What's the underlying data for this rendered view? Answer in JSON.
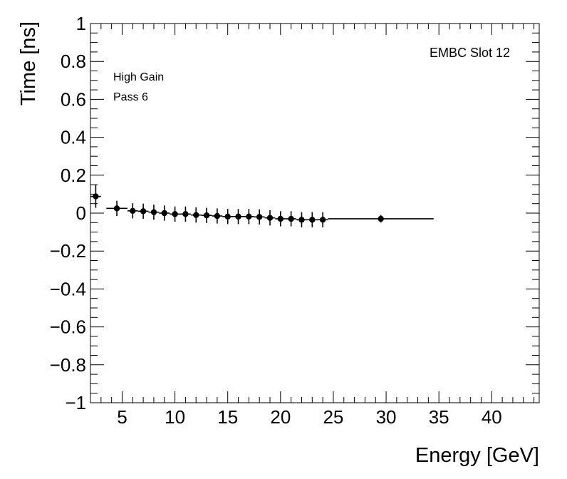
{
  "chart_data": {
    "type": "scatter",
    "xlabel": "Energy [GeV]",
    "ylabel": "Time [ns]",
    "xlim": [
      2,
      44.5
    ],
    "ylim": [
      -1,
      1
    ],
    "x_ticks": [
      5,
      10,
      15,
      20,
      25,
      30,
      35,
      40
    ],
    "x_tick_labels": [
      "5",
      "10",
      "15",
      "20",
      "25",
      "30",
      "35",
      "40"
    ],
    "y_ticks": [
      -1,
      -0.8,
      -0.6,
      -0.4,
      -0.2,
      0,
      0.2,
      0.4,
      0.6,
      0.8,
      1
    ],
    "y_tick_labels": [
      "−1",
      "−0.8",
      "−0.6",
      "−0.4",
      "−0.2",
      "0",
      "0.2",
      "0.4",
      "0.6",
      "0.8",
      "1"
    ],
    "grid": false,
    "annotations": {
      "top_right": "EMBC Slot 12",
      "top_left_1": "High Gain",
      "top_left_2": "Pass 6"
    },
    "points": [
      {
        "x": 2.5,
        "y": 0.088,
        "xerr": 0.5,
        "yerr": 0.06
      },
      {
        "x": 4.5,
        "y": 0.025,
        "xerr": 1.0,
        "yerr": 0.04
      },
      {
        "x": 6.0,
        "y": 0.012,
        "xerr": 0.5,
        "yerr": 0.04
      },
      {
        "x": 7.0,
        "y": 0.01,
        "xerr": 0.5,
        "yerr": 0.04
      },
      {
        "x": 8.0,
        "y": 0.005,
        "xerr": 0.5,
        "yerr": 0.04
      },
      {
        "x": 9.0,
        "y": 0.0,
        "xerr": 0.5,
        "yerr": 0.04
      },
      {
        "x": 10.0,
        "y": -0.005,
        "xerr": 0.5,
        "yerr": 0.04
      },
      {
        "x": 11.0,
        "y": -0.005,
        "xerr": 0.5,
        "yerr": 0.04
      },
      {
        "x": 12.0,
        "y": -0.01,
        "xerr": 0.5,
        "yerr": 0.04
      },
      {
        "x": 13.0,
        "y": -0.012,
        "xerr": 0.5,
        "yerr": 0.04
      },
      {
        "x": 14.0,
        "y": -0.015,
        "xerr": 0.5,
        "yerr": 0.04
      },
      {
        "x": 15.0,
        "y": -0.018,
        "xerr": 0.5,
        "yerr": 0.04
      },
      {
        "x": 16.0,
        "y": -0.018,
        "xerr": 0.5,
        "yerr": 0.04
      },
      {
        "x": 17.0,
        "y": -0.018,
        "xerr": 0.5,
        "yerr": 0.04
      },
      {
        "x": 18.0,
        "y": -0.02,
        "xerr": 0.5,
        "yerr": 0.04
      },
      {
        "x": 19.0,
        "y": -0.025,
        "xerr": 0.5,
        "yerr": 0.04
      },
      {
        "x": 20.0,
        "y": -0.03,
        "xerr": 0.5,
        "yerr": 0.04
      },
      {
        "x": 21.0,
        "y": -0.03,
        "xerr": 0.5,
        "yerr": 0.04
      },
      {
        "x": 22.0,
        "y": -0.035,
        "xerr": 0.5,
        "yerr": 0.04
      },
      {
        "x": 23.0,
        "y": -0.035,
        "xerr": 0.5,
        "yerr": 0.04
      },
      {
        "x": 24.0,
        "y": -0.035,
        "xerr": 0.5,
        "yerr": 0.04
      },
      {
        "x": 29.5,
        "y": -0.03,
        "xerr": 5.0,
        "yerr": 0.02
      }
    ]
  }
}
